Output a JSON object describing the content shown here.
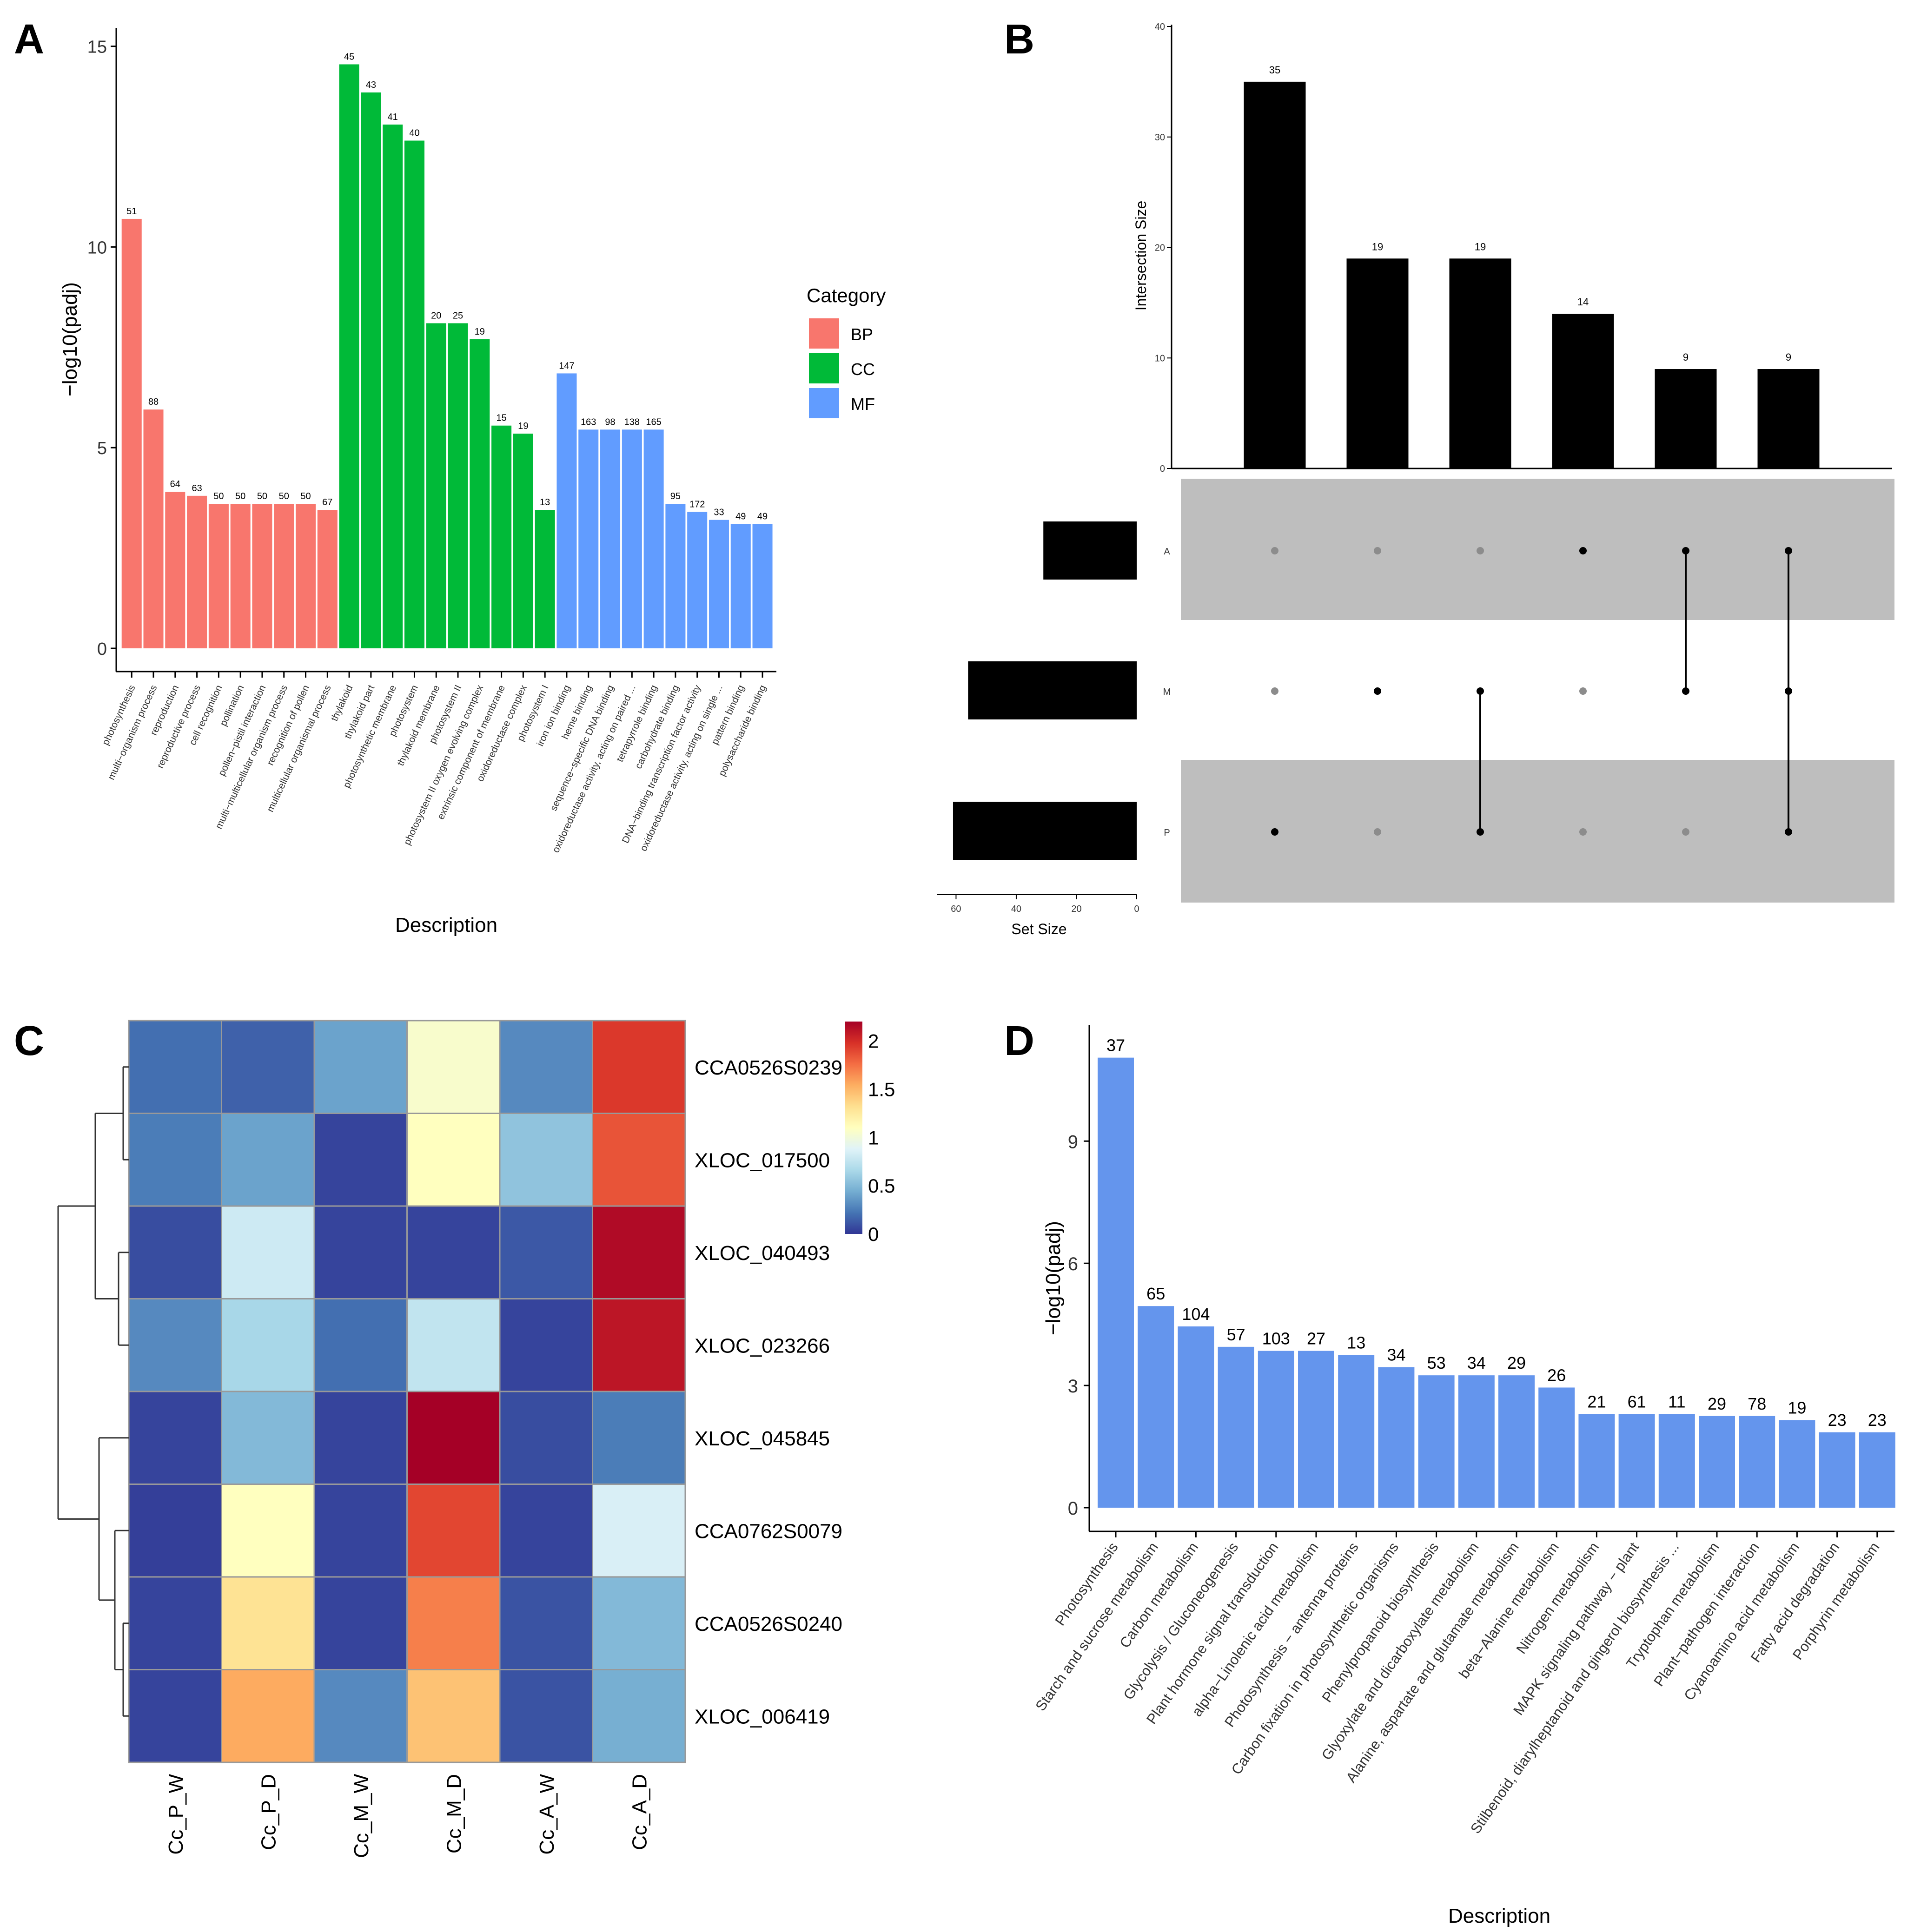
{
  "panels": {
    "A": "A",
    "B": "B",
    "C": "C",
    "D": "D"
  },
  "colors": {
    "BP": "#F8766D",
    "CC": "#00BA38",
    "MF": "#619CFF",
    "upset_bar": "#000000",
    "upset_stripe": "#BEBEBE",
    "dot_inactive": "#8C8C8C",
    "D_bar": "#6495ED"
  },
  "chart_data": [
    {
      "id": "A",
      "type": "bar",
      "title": "",
      "xlabel": "Description",
      "ylabel": "−log10(padj)",
      "ylim": [
        0,
        15
      ],
      "yticks": [
        0,
        5,
        10,
        15
      ],
      "grid": false,
      "legend": {
        "title": "Category",
        "entries": [
          "BP",
          "CC",
          "MF"
        ],
        "placement": "right"
      },
      "categories": [
        "photosynthesis",
        "multi−organism process",
        "reproduction",
        "reproductive process",
        "cell recognition",
        "pollination",
        "pollen−pistil interaction",
        "multi−multicellular organism process",
        "recognition of pollen",
        "multicellular organismal process",
        "thylakoid",
        "thylakoid part",
        "photosynthetic membrane",
        "photosystem",
        "thylakoid membrane",
        "photosystem II",
        "photosystem II oxygen evolving complex",
        "extrinsic component of membrane",
        "oxidoreductase complex",
        "photosystem I",
        "iron ion binding",
        "heme binding",
        "sequence−specific DNA binding",
        "oxidoreductase activity, acting on paired ...",
        "tetrapyrrole binding",
        "carbohydrate binding",
        "DNA−binding transcription factor activity",
        "oxidoreductase activity, acting on single ...",
        "pattern binding",
        "polysaccharide binding"
      ],
      "values": [
        10.7,
        5.95,
        3.9,
        3.8,
        3.6,
        3.6,
        3.6,
        3.6,
        3.6,
        3.45,
        14.55,
        13.85,
        13.05,
        12.65,
        8.1,
        8.1,
        7.7,
        5.55,
        5.35,
        3.45,
        6.85,
        5.45,
        5.45,
        5.45,
        5.45,
        3.6,
        3.4,
        3.2,
        3.1,
        3.1
      ],
      "labels": [
        "51",
        "88",
        "64",
        "63",
        "50",
        "50",
        "50",
        "50",
        "50",
        "67",
        "45",
        "43",
        "41",
        "40",
        "20",
        "25",
        "19",
        "15",
        "19",
        "13",
        "147",
        "163",
        "98",
        "138",
        "165",
        "95",
        "172",
        "33",
        "49",
        "49"
      ],
      "category_group": [
        "BP",
        "BP",
        "BP",
        "BP",
        "BP",
        "BP",
        "BP",
        "BP",
        "BP",
        "BP",
        "CC",
        "CC",
        "CC",
        "CC",
        "CC",
        "CC",
        "CC",
        "CC",
        "CC",
        "CC",
        "MF",
        "MF",
        "MF",
        "MF",
        "MF",
        "MF",
        "MF",
        "MF",
        "MF",
        "MF"
      ]
    },
    {
      "id": "B",
      "type": "bar",
      "subtype": "upset",
      "ylabel": "Intersection Size",
      "ylim": [
        0,
        40
      ],
      "yticks": [
        0,
        10,
        20,
        30,
        40
      ],
      "intersection_sizes": [
        35,
        19,
        19,
        14,
        9,
        9
      ],
      "intersection_labels": [
        "35",
        "19",
        "19",
        "14",
        "9",
        "9"
      ],
      "sets": [
        "A",
        "M",
        "P"
      ],
      "set_sizes": [
        31,
        56,
        61
      ],
      "set_size_label": "Set Size",
      "set_size_xlim": [
        0,
        63
      ],
      "set_size_ticks": [
        60,
        40,
        20,
        0
      ],
      "membership": [
        [
          "P"
        ],
        [
          "M"
        ],
        [
          "M",
          "P"
        ],
        [
          "A"
        ],
        [
          "A",
          "M"
        ],
        [
          "A",
          "M",
          "P"
        ]
      ]
    },
    {
      "id": "C",
      "type": "heatmap",
      "columns": [
        "Cc_P_W",
        "Cc_P_D",
        "Cc_M_W",
        "Cc_M_D",
        "Cc_A_W",
        "Cc_A_D"
      ],
      "rows": [
        "CCA0526S0239",
        "XLOC_017500",
        "XLOC_040493",
        "XLOC_023266",
        "XLOC_045845",
        "CCA0762S0079",
        "CCA0526S0240",
        "XLOC_006419"
      ],
      "values": [
        [
          0.2,
          0.15,
          0.4,
          1.05,
          0.3,
          1.95
        ],
        [
          0.25,
          0.4,
          0.05,
          1.1,
          0.55,
          1.85
        ],
        [
          0.08,
          0.8,
          0.05,
          0.05,
          0.12,
          2.15
        ],
        [
          0.3,
          0.65,
          0.2,
          0.75,
          0.05,
          2.1
        ],
        [
          0.05,
          0.5,
          0.05,
          2.2,
          0.08,
          0.25
        ],
        [
          0.03,
          1.1,
          0.05,
          1.9,
          0.05,
          0.85
        ],
        [
          0.05,
          1.3,
          0.05,
          1.7,
          0.1,
          0.5
        ],
        [
          0.05,
          1.55,
          0.3,
          1.45,
          0.1,
          0.45
        ]
      ],
      "color_scale": {
        "min": 0,
        "max": 2.2,
        "ticks": [
          "0",
          "0.5",
          "1",
          "1.5",
          "2"
        ],
        "colors": [
          "#313695",
          "#4575B4",
          "#74ADD1",
          "#ABD9E9",
          "#E0F3F8",
          "#FFFFBF",
          "#FEE090",
          "#FDAE61",
          "#F46D43",
          "#D73027",
          "#A50026"
        ]
      },
      "row_dendrogram": true
    },
    {
      "id": "D",
      "type": "bar",
      "xlabel": "Description",
      "ylabel": "−log10(padj)",
      "ylim": [
        0,
        11.4
      ],
      "yticks": [
        0,
        3,
        6,
        9
      ],
      "grid": false,
      "categories": [
        "Photosynthesis",
        "Starch and sucrose metabolism",
        "Carbon metabolism",
        "Glycolysis / Gluconeogenesis",
        "Plant hormone signal transduction",
        "alpha−Linolenic acid metabolism",
        "Photosynthesis − antenna proteins",
        "Carbon fixation in photosynthetic organisms",
        "Phenylpropanoid biosynthesis",
        "Glyoxylate and dicarboxylate metabolism",
        "Alanine, aspartate and glutamate metabolism",
        "beta−Alanine metabolism",
        "Nitrogen metabolism",
        "MAPK signaling pathway − plant",
        "Stilbenoid, diarylheptanoid and gingerol biosynthesis ...",
        "Tryptophan metabolism",
        "Plant−pathogen interaction",
        "Cyanoamino acid metabolism",
        "Fatty acid degradation",
        "Porphyrin metabolism"
      ],
      "values": [
        11.05,
        4.95,
        4.45,
        3.95,
        3.85,
        3.85,
        3.75,
        3.45,
        3.25,
        3.25,
        3.25,
        2.95,
        2.3,
        2.3,
        2.3,
        2.25,
        2.25,
        2.15,
        1.85,
        1.85
      ],
      "labels": [
        "37",
        "65",
        "104",
        "57",
        "103",
        "27",
        "13",
        "34",
        "53",
        "34",
        "29",
        "26",
        "21",
        "61",
        "11",
        "29",
        "78",
        "19",
        "23",
        "23"
      ]
    }
  ]
}
